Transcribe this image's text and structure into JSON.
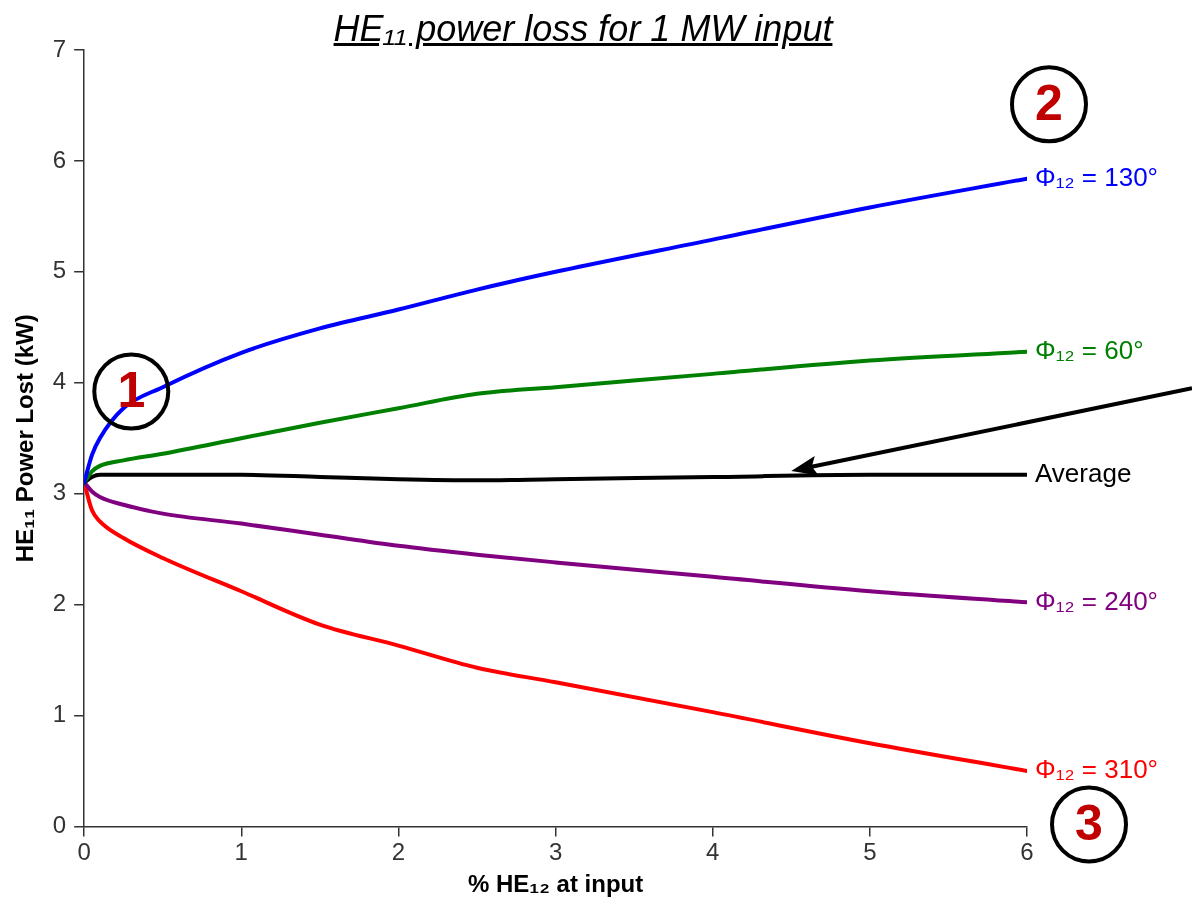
{
  "chart_data": {
    "type": "line",
    "title": "HE₁₁ power loss for 1 MW input",
    "xlabel": "% HE₁₂ at input",
    "ylabel": "HE₁₁ Power Lost (kW)",
    "x": [
      0,
      0.05,
      0.1,
      0.25,
      0.5,
      1,
      1.5,
      2,
      2.5,
      3,
      4,
      5,
      6
    ],
    "series": [
      {
        "name": "Φ₁₂ = 130°",
        "color": "#0000ff",
        "values": [
          3.1,
          3.35,
          3.5,
          3.77,
          3.96,
          4.27,
          4.49,
          4.66,
          4.84,
          5.0,
          5.29,
          5.58,
          5.84
        ]
      },
      {
        "name": "Φ₁₂ = 60°",
        "color": "#008000",
        "values": [
          3.1,
          3.2,
          3.25,
          3.3,
          3.36,
          3.5,
          3.64,
          3.77,
          3.9,
          3.96,
          4.08,
          4.2,
          4.28
        ]
      },
      {
        "name": "Average",
        "color": "#000000",
        "values": [
          3.1,
          3.15,
          3.17,
          3.17,
          3.17,
          3.17,
          3.15,
          3.13,
          3.12,
          3.13,
          3.15,
          3.17,
          3.17
        ]
      },
      {
        "name": "Φ₁₂ = 240°",
        "color": "#800080",
        "values": [
          3.1,
          3.02,
          2.97,
          2.9,
          2.82,
          2.73,
          2.63,
          2.53,
          2.45,
          2.38,
          2.25,
          2.12,
          2.02
        ]
      },
      {
        "name": "Φ₁₂ = 310°",
        "color": "#ff0000",
        "values": [
          3.1,
          2.85,
          2.75,
          2.6,
          2.42,
          2.12,
          1.82,
          1.63,
          1.43,
          1.3,
          1.03,
          0.75,
          0.5
        ]
      }
    ],
    "annotations": [
      "1",
      "2",
      "3"
    ],
    "xlim": [
      0,
      6
    ],
    "xticks": [
      0,
      1,
      2,
      3,
      4,
      5,
      6
    ],
    "ylim": [
      0,
      7
    ],
    "yticks": [
      0,
      1,
      2,
      3,
      4,
      5,
      6,
      7
    ],
    "grid": false,
    "legend": false,
    "marker": "none",
    "line_style": "solid"
  }
}
